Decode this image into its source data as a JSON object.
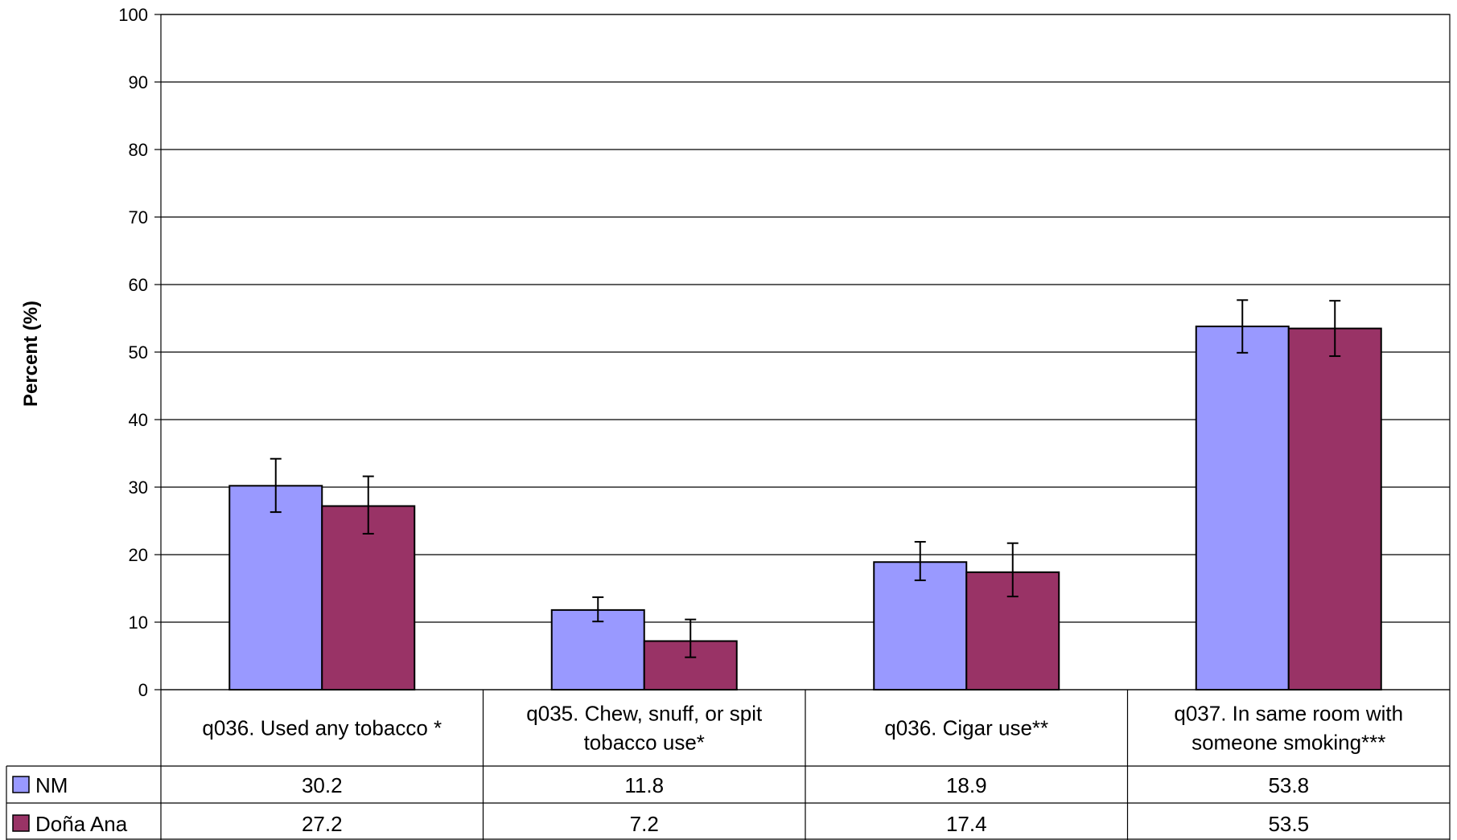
{
  "chart_data": {
    "type": "bar",
    "title": "",
    "xlabel": "",
    "ylabel": "Percent (%)",
    "ylim": [
      0,
      100
    ],
    "yticks": [
      0,
      10,
      20,
      30,
      40,
      50,
      60,
      70,
      80,
      90,
      100
    ],
    "grid": true,
    "categories": [
      [
        "q036. Used any tobacco *"
      ],
      [
        "q035. Chew, snuff, or spit",
        "tobacco use*"
      ],
      [
        "q036. Cigar use**"
      ],
      [
        "q037. In same room with",
        "someone smoking***"
      ]
    ],
    "series": [
      {
        "name": "NM",
        "color": "#9999FF",
        "values": [
          30.2,
          11.8,
          18.9,
          53.8
        ],
        "error_low": [
          26.3,
          10.1,
          16.2,
          49.9
        ],
        "error_high": [
          34.2,
          13.7,
          21.9,
          57.7
        ]
      },
      {
        "name": "Doña Ana",
        "color": "#993366",
        "values": [
          27.2,
          7.2,
          17.4,
          53.5
        ],
        "error_low": [
          23.1,
          4.8,
          13.8,
          49.4
        ],
        "error_high": [
          31.6,
          10.4,
          21.7,
          57.6
        ]
      }
    ],
    "table_values": [
      [
        "30.2",
        "11.8",
        "18.9",
        "53.8"
      ],
      [
        "27.2",
        "7.2",
        "17.4",
        "53.5"
      ]
    ],
    "legend": "data-table"
  }
}
